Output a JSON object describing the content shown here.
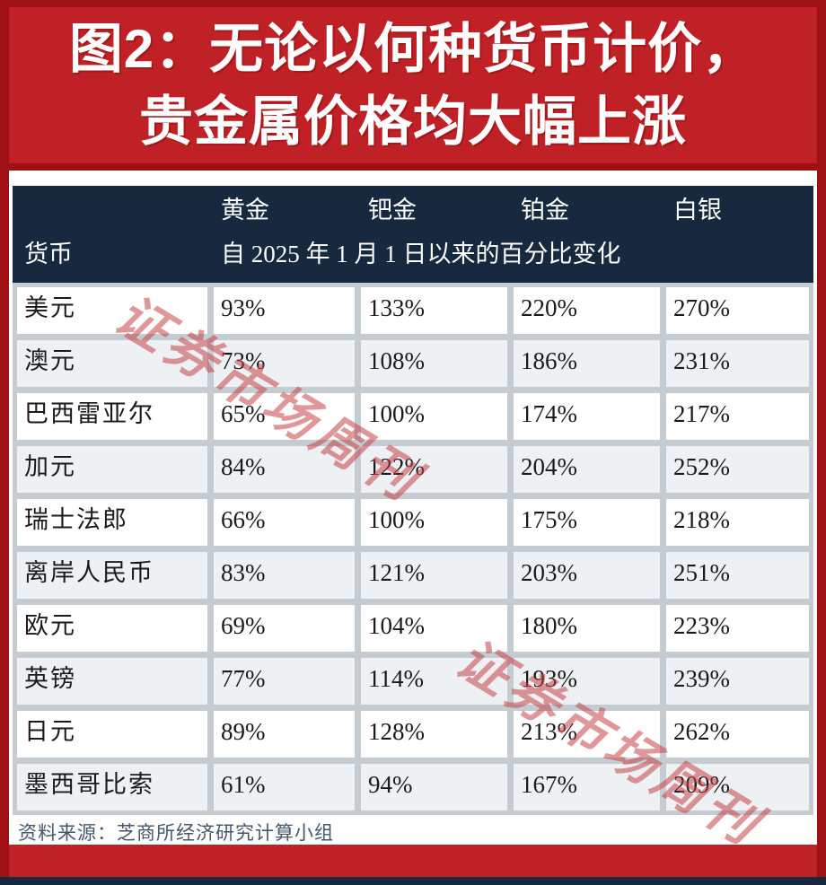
{
  "title": {
    "line1": "图2：无论以何种货币计价，",
    "line2": "贵金属价格均大幅上涨"
  },
  "table": {
    "metal_headers": [
      "黄金",
      "钯金",
      "铂金",
      "白银"
    ],
    "currency_label": "货币",
    "subtitle": "自 2025 年 1 月 1 日以来的百分比变化",
    "rows": [
      {
        "currency": "美元",
        "values": [
          "93%",
          "133%",
          "220%",
          "270%"
        ]
      },
      {
        "currency": "澳元",
        "values": [
          "73%",
          "108%",
          "186%",
          "231%"
        ]
      },
      {
        "currency": "巴西雷亚尔",
        "values": [
          "65%",
          "100%",
          "174%",
          "217%"
        ]
      },
      {
        "currency": "加元",
        "values": [
          "84%",
          "122%",
          "204%",
          "252%"
        ]
      },
      {
        "currency": "瑞士法郎",
        "values": [
          "66%",
          "100%",
          "175%",
          "218%"
        ]
      },
      {
        "currency": "离岸人民币",
        "values": [
          "83%",
          "121%",
          "203%",
          "251%"
        ]
      },
      {
        "currency": "欧元",
        "values": [
          "69%",
          "104%",
          "180%",
          "223%"
        ]
      },
      {
        "currency": "英镑",
        "values": [
          "77%",
          "114%",
          "193%",
          "239%"
        ]
      },
      {
        "currency": "日元",
        "values": [
          "89%",
          "128%",
          "213%",
          "262%"
        ]
      },
      {
        "currency": "墨西哥比索",
        "values": [
          "61%",
          "94%",
          "167%",
          "209%"
        ]
      }
    ]
  },
  "source": "资料来源：芝商所经济研究计算小组",
  "watermark": {
    "text": "证券市场周刊"
  },
  "colors": {
    "frame_red": "#9e1014",
    "banner_red": "#bf2126",
    "header_navy": "#16293e",
    "grid_gray": "#c4ccd1",
    "row_light": "#edf1f4",
    "watermark_red": "rgba(196,66,70,0.55)"
  },
  "chart_data": {
    "type": "table",
    "title": "图2：无论以何种货币计价，贵金属价格均大幅上涨",
    "subtitle": "自 2025 年 1 月 1 日以来的百分比变化",
    "row_header": "货币",
    "columns": [
      "黄金",
      "钯金",
      "铂金",
      "白银"
    ],
    "categories": [
      "美元",
      "澳元",
      "巴西雷亚尔",
      "加元",
      "瑞士法郎",
      "离岸人民币",
      "欧元",
      "英镑",
      "日元",
      "墨西哥比索"
    ],
    "series": [
      {
        "name": "黄金",
        "values": [
          93,
          73,
          65,
          84,
          66,
          83,
          69,
          77,
          89,
          61
        ]
      },
      {
        "name": "钯金",
        "values": [
          133,
          108,
          100,
          122,
          100,
          121,
          104,
          114,
          128,
          94
        ]
      },
      {
        "name": "铂金",
        "values": [
          220,
          186,
          174,
          204,
          175,
          203,
          180,
          193,
          213,
          167
        ]
      },
      {
        "name": "白银",
        "values": [
          270,
          231,
          217,
          252,
          218,
          251,
          223,
          239,
          262,
          209
        ]
      }
    ],
    "unit": "%",
    "source": "资料来源：芝商所经济研究计算小组"
  }
}
